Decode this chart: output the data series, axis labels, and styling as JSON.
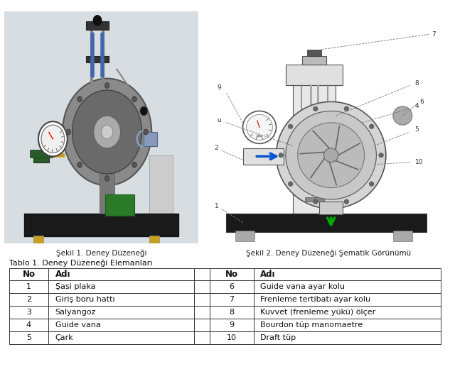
{
  "title_caption1": "Şekil 1. Deney Düzeneği",
  "title_caption2": "Şekil 2. Deney Düzeneği Şematik Görünümü",
  "table_title": "Tablo 1. Deney Düzeneği Elemanları",
  "table_rows_left": [
    [
      "1",
      "Şasi plaka"
    ],
    [
      "2",
      "Giriş boru hattı"
    ],
    [
      "3",
      "Salyangoz"
    ],
    [
      "4",
      "Guide vana"
    ],
    [
      "5",
      "Çark"
    ]
  ],
  "table_rows_right": [
    [
      "6",
      "Guide vana ayar kolu"
    ],
    [
      "7",
      "Frenleme tertibatı ayar kolu"
    ],
    [
      "8",
      "Kuvvet (frenleme yükü) ölçer"
    ],
    [
      "9",
      "Bourdon tüp manomaetre"
    ],
    [
      "10",
      "Draft tüp"
    ]
  ],
  "bg_color": "#ffffff",
  "img_left_bg": "#dde3e8",
  "img_right_bg": "#f5f5f5",
  "caption_fontsize": 7.5,
  "table_title_fontsize": 8,
  "header_fontsize": 8.5,
  "cell_fontsize": 8
}
